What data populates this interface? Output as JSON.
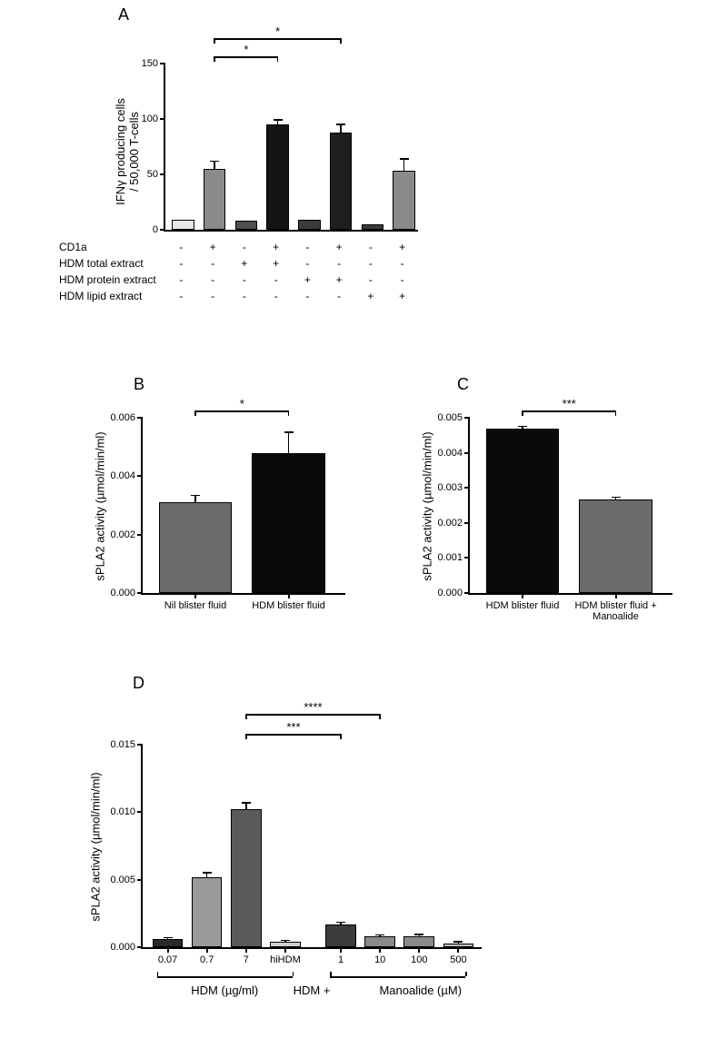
{
  "panelA": {
    "label": "A",
    "type": "bar",
    "y_axis_label_line1": "IFNγ producing cells",
    "y_axis_label_line2": "/ 50,000 T-cells",
    "ylim": [
      0,
      150
    ],
    "yticks": [
      0,
      50,
      100,
      150
    ],
    "bars": [
      {
        "value": 9,
        "err": 0,
        "color": "#e8e8e8"
      },
      {
        "value": 55,
        "err": 7,
        "color": "#8a8a8a"
      },
      {
        "value": 8,
        "err": 0,
        "color": "#4f4f4f"
      },
      {
        "value": 95,
        "err": 4,
        "color": "#141414"
      },
      {
        "value": 9,
        "err": 0,
        "color": "#3b3b3b"
      },
      {
        "value": 88,
        "err": 7,
        "color": "#1f1f1f"
      },
      {
        "value": 5,
        "err": 0,
        "color": "#3b3b3b"
      },
      {
        "value": 53,
        "err": 11,
        "color": "#8a8a8a"
      }
    ],
    "cond_rows": [
      {
        "label": "CD1a",
        "cells": [
          "-",
          "+",
          "-",
          "+",
          "-",
          "+",
          "-",
          "+"
        ]
      },
      {
        "label": "HDM total extract",
        "cells": [
          "-",
          "-",
          "+",
          "+",
          "-",
          "-",
          "-",
          "-"
        ]
      },
      {
        "label": "HDM protein extract",
        "cells": [
          "-",
          "-",
          "-",
          "-",
          "+",
          "+",
          "-",
          "-"
        ]
      },
      {
        "label": "HDM lipid extract",
        "cells": [
          "-",
          "-",
          "-",
          "-",
          "-",
          "-",
          "+",
          "+"
        ]
      }
    ],
    "sig": [
      {
        "from": 1,
        "to": 3,
        "label": "*",
        "lvl": 0
      },
      {
        "from": 1,
        "to": 5,
        "label": "*",
        "lvl": 1
      }
    ]
  },
  "panelB": {
    "label": "B",
    "type": "bar",
    "y_axis_label": "sPLA2 activity (µmol/min/ml)",
    "ylim": [
      0,
      0.006
    ],
    "yticks": [
      0,
      0.002,
      0.004,
      0.006
    ],
    "ytick_labels": [
      "0.000",
      "0.002",
      "0.004",
      "0.006"
    ],
    "bars": [
      {
        "label": "Nil blister fluid",
        "value": 0.0031,
        "err": 0.00025,
        "color": "#6b6b6b"
      },
      {
        "label": "HDM blister fluid",
        "value": 0.0048,
        "err": 0.0007,
        "color": "#0a0a0a"
      }
    ],
    "sig": {
      "label": "*"
    }
  },
  "panelC": {
    "label": "C",
    "type": "bar",
    "y_axis_label": "sPLA2 activity (µmol/min/ml)",
    "ylim": [
      0,
      0.005
    ],
    "yticks": [
      0,
      0.001,
      0.002,
      0.003,
      0.004,
      0.005
    ],
    "ytick_labels": [
      "0.000",
      "0.001",
      "0.002",
      "0.003",
      "0.004",
      "0.005"
    ],
    "bars": [
      {
        "label": "HDM blister fluid",
        "value": 0.0047,
        "err": 5e-05,
        "color": "#0a0a0a"
      },
      {
        "label_l1": "HDM blister fluid +",
        "label_l2": "Manoalide",
        "value": 0.00268,
        "err": 5e-05,
        "color": "#6b6b6b"
      }
    ],
    "sig": {
      "label": "***"
    }
  },
  "panelD": {
    "label": "D",
    "type": "bar",
    "y_axis_label": "sPLA2 activity (µmol/min/ml)",
    "ylim": [
      0,
      0.015
    ],
    "yticks": [
      0,
      0.005,
      0.01,
      0.015
    ],
    "ytick_labels": [
      "0.000",
      "0.005",
      "0.010",
      "0.015"
    ],
    "x_labels": [
      "0.07",
      "0.7",
      "7",
      "hiHDM",
      "1",
      "10",
      "100",
      "500"
    ],
    "bars": [
      {
        "value": 0.0006,
        "err": 0.0001,
        "color": "#2a2a2a"
      },
      {
        "value": 0.0052,
        "err": 0.0003,
        "color": "#9a9a9a"
      },
      {
        "value": 0.0102,
        "err": 0.0005,
        "color": "#5a5a5a"
      },
      {
        "value": 0.0004,
        "err": 0.0001,
        "color": "#cfcfcf"
      },
      {
        "value": 0.0017,
        "err": 0.00015,
        "color": "#3b3b3b"
      },
      {
        "value": 0.0008,
        "err": 0.0001,
        "color": "#8a8a8a"
      },
      {
        "value": 0.0008,
        "err": 0.00015,
        "color": "#8a8a8a"
      },
      {
        "value": 0.0003,
        "err": 0.0001,
        "color": "#bcbcbc"
      }
    ],
    "group1": "HDM (µg/ml)",
    "group2a": "HDM +",
    "group2b": "Manoalide (µM)",
    "sig": [
      {
        "from": 2,
        "to": 4,
        "label": "***",
        "lvl": 0
      },
      {
        "from": 2,
        "to": 5,
        "label": "****",
        "lvl": 1
      }
    ]
  },
  "colors": {
    "axis": "#000000",
    "background": "#ffffff"
  },
  "fonts": {
    "axis_label_pt": 13,
    "tick_label_pt": 11,
    "panel_label_pt": 18
  }
}
